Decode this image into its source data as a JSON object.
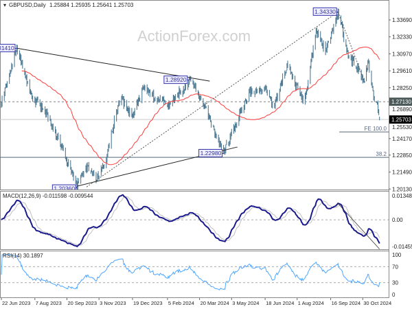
{
  "header": {
    "symbol": "GBPUSD,Daily",
    "ohlc": "1.25884 1.25935 1.25641 1.25703",
    "watermark": "ActionForex.com"
  },
  "chart_data": {
    "type": "candlestick",
    "symbol": "GBPUSD",
    "timeframe": "Daily",
    "last": {
      "open": 1.25884,
      "high": 1.25935,
      "low": 1.25641,
      "close": 1.25703
    },
    "price_range": [
      1.2013,
      1.3433
    ],
    "price_ticks": [
      "1.33690",
      "1.32330",
      "1.30970",
      "1.29610",
      "1.28250",
      "1.26890",
      "1.25530",
      "1.24170",
      "1.22850",
      "1.21490",
      "1.20130"
    ],
    "x_ticks": [
      {
        "date": "2023-06-22",
        "label": "22 Jun 2023"
      },
      {
        "date": "2023-08-07",
        "label": "7 Aug 2023"
      },
      {
        "date": "2023-09-20",
        "label": "20 Sep 2023"
      },
      {
        "date": "2023-11-03",
        "label": "3 Nov 2023"
      },
      {
        "date": "2023-12-19",
        "label": "19 Dec 2023"
      },
      {
        "date": "2024-02-05",
        "label": "5 Feb 2024"
      },
      {
        "date": "2024-03-20",
        "label": "20 Mar 2024"
      },
      {
        "date": "2024-05-03",
        "label": "3 May 2024"
      },
      {
        "date": "2024-06-18",
        "label": "18 Jun 2024"
      },
      {
        "date": "2024-08-01",
        "label": "1 Aug 2024"
      },
      {
        "date": "2024-09-16",
        "label": "16 Sep 2024"
      },
      {
        "date": "2024-10-30",
        "label": "30 Oct 2024"
      }
    ],
    "swing_points": [
      [
        "2023-06-22",
        1.2702
      ],
      [
        "2023-07-14",
        1.3141
      ],
      [
        "2023-08-02",
        1.2757
      ],
      [
        "2023-08-20",
        1.2647
      ],
      [
        "2023-09-13",
        1.2344
      ],
      [
        "2023-10-04",
        1.2036
      ],
      [
        "2023-10-17",
        1.219
      ],
      [
        "2023-10-31",
        1.209
      ],
      [
        "2023-11-13",
        1.2272
      ],
      [
        "2023-12-02",
        1.2757
      ],
      [
        "2023-12-18",
        1.2592
      ],
      [
        "2024-01-03",
        1.2813
      ],
      [
        "2024-02-05",
        1.2675
      ],
      [
        "2024-03-08",
        1.2892
      ],
      [
        "2024-03-26",
        1.2702
      ],
      [
        "2024-04-01",
        1.2592
      ],
      [
        "2024-04-22",
        1.2298
      ],
      [
        "2024-05-09",
        1.2537
      ],
      [
        "2024-05-27",
        1.2785
      ],
      [
        "2024-06-20",
        1.2813
      ],
      [
        "2024-06-29",
        1.2647
      ],
      [
        "2024-07-18",
        1.3005
      ],
      [
        "2024-08-11",
        1.2702
      ],
      [
        "2024-08-27",
        1.3281
      ],
      [
        "2024-09-09",
        1.3116
      ],
      [
        "2024-09-26",
        1.3433
      ],
      [
        "2024-10-10",
        1.3088
      ],
      [
        "2024-10-24",
        1.2978
      ],
      [
        "2024-11-02",
        1.2868
      ],
      [
        "2024-11-06",
        1.3044
      ],
      [
        "2024-11-15",
        1.2702
      ],
      [
        "2024-11-18",
        1.2713
      ],
      [
        "2024-11-22",
        1.25703
      ]
    ],
    "price_labels": [
      {
        "text": "1.31410",
        "date": "2023-07-14",
        "price": 1.3141
      },
      {
        "text": "1.28920",
        "date": "2024-03-08",
        "price": 1.2892
      },
      {
        "text": "1.22980",
        "date": "2024-04-22",
        "price": 1.2298
      },
      {
        "text": "1.20360",
        "date": "2023-10-04",
        "price": 1.2036
      },
      {
        "text": "1.34330",
        "date": "2024-09-26",
        "price": 1.3433
      }
    ],
    "trendlines": [
      {
        "style": "solid",
        "from": [
          "2023-07-14",
          1.3141
        ],
        "to": [
          "2024-04-03",
          1.2878
        ]
      },
      {
        "style": "solid",
        "from": [
          "2023-10-04",
          1.2036
        ],
        "to": [
          "2024-05-11",
          1.235
        ]
      },
      {
        "style": "dotted",
        "from": [
          "2023-10-17",
          1.203
        ],
        "to": [
          "2024-09-26",
          1.3433
        ]
      },
      {
        "style": "dotted",
        "from": [
          "2024-09-26",
          1.3433
        ],
        "to": [
          "2024-11-02",
          1.2868
        ]
      }
    ],
    "levels": [
      {
        "price": 1.2713,
        "label": "1.27130",
        "style": "dashed"
      },
      {
        "price": 1.25703,
        "label": "1.25703",
        "style": "current"
      },
      {
        "price": 1.2471,
        "label": "FE 100.0",
        "style": "partial"
      },
      {
        "price": 1.2267,
        "label": "38.2",
        "style": "solid"
      }
    ],
    "moving_average": {
      "color": "#ff3b3b",
      "period": 55
    },
    "candle_color": "#4f7a94",
    "macd": {
      "label": "MACD(12,26,9) -0.011598 -0.009544",
      "ticks": [
        "0.013489",
        "0.00",
        "-0.014554"
      ],
      "range": [
        -0.014554,
        0.013489
      ],
      "main_color": "#1a1a8c",
      "signal_color": "#c0c0c0"
    },
    "rsi": {
      "label": "RSI(14) 30.1897",
      "ticks": [
        "100",
        "70",
        "30",
        "0"
      ],
      "range": [
        0,
        100
      ],
      "color": "#4da6ff"
    }
  }
}
